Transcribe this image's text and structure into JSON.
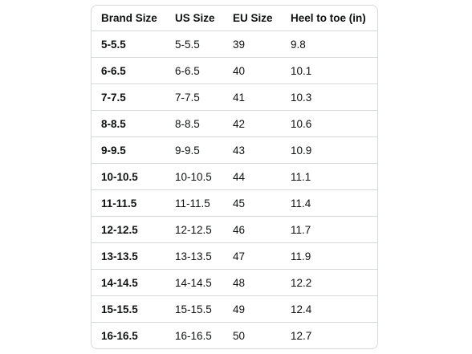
{
  "table": {
    "header": [
      "Brand Size",
      "US Size",
      "EU Size",
      "Heel to toe (in)"
    ],
    "rows": [
      [
        "5-5.5",
        "5-5.5",
        "39",
        "9.8"
      ],
      [
        "6-6.5",
        "6-6.5",
        "40",
        "10.1"
      ],
      [
        "7-7.5",
        "7-7.5",
        "41",
        "10.3"
      ],
      [
        "8-8.5",
        "8-8.5",
        "42",
        "10.6"
      ],
      [
        "9-9.5",
        "9-9.5",
        "43",
        "10.9"
      ],
      [
        "10-10.5",
        "10-10.5",
        "44",
        "11.1"
      ],
      [
        "11-11.5",
        "11-11.5",
        "45",
        "11.4"
      ],
      [
        "12-12.5",
        "12-12.5",
        "46",
        "11.7"
      ],
      [
        "13-13.5",
        "13-13.5",
        "47",
        "11.9"
      ],
      [
        "14-14.5",
        "14-14.5",
        "48",
        "12.2"
      ],
      [
        "15-15.5",
        "15-15.5",
        "49",
        "12.4"
      ],
      [
        "16-16.5",
        "16-16.5",
        "50",
        "12.7"
      ]
    ]
  }
}
